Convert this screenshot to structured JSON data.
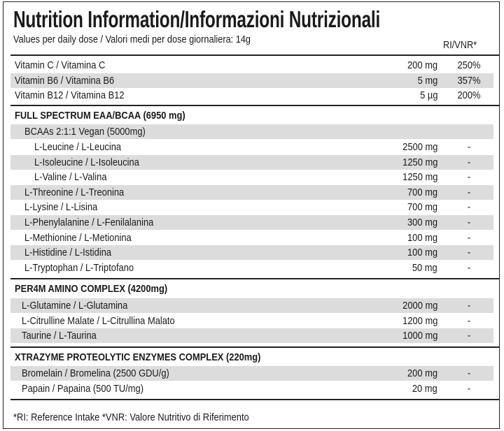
{
  "header": {
    "title": "Nutrition Information/Informazioni Nutrizionali",
    "subtitle": "Values per daily dose / Valori medi per dose giornaliera: 14g",
    "ri_label": "RI/VNR*"
  },
  "vitamins": [
    {
      "name": "Vitamin C / Vitamina C",
      "amount": "200 mg",
      "ri": "250%"
    },
    {
      "name": "Vitamin B6 / Vitamina B6",
      "amount": "5 mg",
      "ri": "357%"
    },
    {
      "name": "Vitamin B12 / Vitamina B12",
      "amount": "5 µg",
      "ri": "200%"
    }
  ],
  "sections": [
    {
      "title": "FULL SPECTRUM EAA/BCAA (6950 mg)",
      "rows": [
        {
          "name": "BCAAs 2:1:1 Vegan (5000mg)"
        },
        {
          "name": "L-Leucine / L-Leucina",
          "amount": "2500 mg",
          "ri": "-"
        },
        {
          "name": "L-Isoleucine / L-Isoleucina",
          "amount": "1250 mg",
          "ri": "-"
        },
        {
          "name": "L-Valine / L-Valina",
          "amount": "1250 mg",
          "ri": "-"
        },
        {
          "name": "L-Threonine / L-Treonina",
          "amount": "700 mg",
          "ri": "-"
        },
        {
          "name": "L-Lysine / L-Lisina",
          "amount": "700 mg",
          "ri": "-"
        },
        {
          "name": "L-Phenylalanine / L-Fenilalanina",
          "amount": "300 mg",
          "ri": "-"
        },
        {
          "name": "L-Methionine / L-Metionina",
          "amount": "100 mg",
          "ri": "-"
        },
        {
          "name": "L-Histidine / L-Istidina",
          "amount": "100 mg",
          "ri": "-"
        },
        {
          "name": "L-Tryptophan / L-Triptofano",
          "amount": "50 mg",
          "ri": "-"
        }
      ]
    },
    {
      "title": "PER4M AMINO COMPLEX (4200mg)",
      "rows": [
        {
          "name": "L-Glutamine / L-Glutamina",
          "amount": "2000 mg",
          "ri": "-"
        },
        {
          "name": "L-Citrulline Malate / L-Citrullina Malato",
          "amount": "1200 mg",
          "ri": "-"
        },
        {
          "name": "Taurine / L-Taurina",
          "amount": "1000 mg",
          "ri": "-"
        }
      ]
    },
    {
      "title": "XTRAZYME PROTEOLYTIC ENZYMES COMPLEX (220mg)",
      "rows": [
        {
          "name": "Bromelain / Bromelina (2500 GDU/g)",
          "amount": "200 mg",
          "ri": "-"
        },
        {
          "name": "Papain / Papaina (500 TU/mg)",
          "amount": "20 mg",
          "ri": "-"
        }
      ]
    }
  ],
  "footnote": "*RI: Reference Intake  *VNR: Valore Nutritivo di Riferimento"
}
